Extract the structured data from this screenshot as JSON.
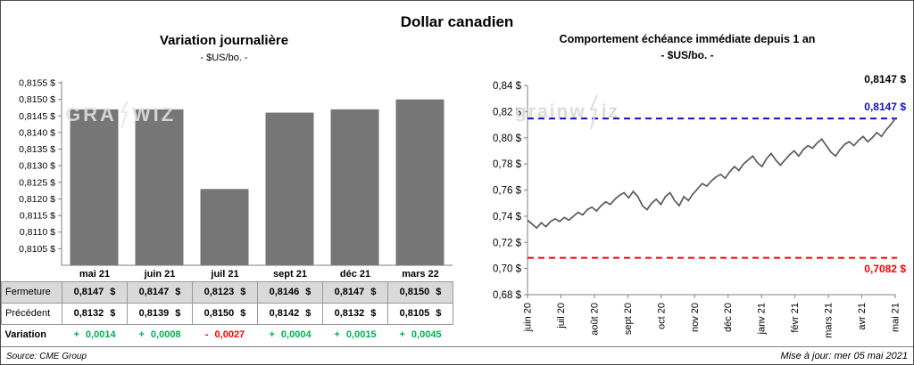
{
  "page_title": "Dollar canadien",
  "watermark": {
    "left_a": "GRA",
    "left_b": "WIZ",
    "right_a": "grainw",
    "right_b": "iz"
  },
  "footer": {
    "source": "Source: CME Group",
    "updated": "Mise à jour: mer 05 mai 2021"
  },
  "chart_data": [
    {
      "type": "bar",
      "title": "Variation journalière",
      "subtitle": "- $US/bo. -",
      "categories": [
        "mai 21",
        "juin 21",
        "juil 21",
        "sept 21",
        "déc 21",
        "mars 22"
      ],
      "values": [
        0.8147,
        0.8147,
        0.8123,
        0.8146,
        0.8147,
        0.815
      ],
      "ylim": [
        0.81,
        0.8155
      ],
      "y_tick_step": 0.0005,
      "y_tick_suffix": " $",
      "bar_color": "#767676",
      "axis_color": "#7f7f7f",
      "grid": false,
      "legend": "none"
    },
    {
      "type": "line",
      "title": "Comportement échéance immédiate depuis 1 an",
      "subtitle": "- $US/bo. -",
      "x_labels": [
        "juin 20",
        "juil 20",
        "août 20",
        "sept 20",
        "oct 20",
        "nov 20",
        "déc 20",
        "janv 21",
        "févr 21",
        "mars 21",
        "avr 21",
        "mai 21"
      ],
      "values": [
        0.737,
        0.734,
        0.731,
        0.735,
        0.732,
        0.736,
        0.738,
        0.736,
        0.739,
        0.737,
        0.74,
        0.743,
        0.741,
        0.745,
        0.747,
        0.744,
        0.748,
        0.751,
        0.749,
        0.753,
        0.756,
        0.758,
        0.754,
        0.759,
        0.755,
        0.748,
        0.745,
        0.75,
        0.753,
        0.749,
        0.755,
        0.758,
        0.752,
        0.748,
        0.755,
        0.752,
        0.757,
        0.761,
        0.765,
        0.763,
        0.767,
        0.77,
        0.772,
        0.769,
        0.774,
        0.778,
        0.775,
        0.78,
        0.783,
        0.786,
        0.781,
        0.778,
        0.784,
        0.788,
        0.783,
        0.779,
        0.783,
        0.787,
        0.79,
        0.786,
        0.791,
        0.794,
        0.792,
        0.796,
        0.799,
        0.794,
        0.789,
        0.786,
        0.791,
        0.795,
        0.797,
        0.794,
        0.798,
        0.801,
        0.797,
        0.8,
        0.804,
        0.801,
        0.806,
        0.81,
        0.8147
      ],
      "ylim": [
        0.68,
        0.84
      ],
      "y_tick_step": 0.02,
      "y_tick_suffix": " $",
      "line_color": "#595959",
      "axis_color": "#808080",
      "grid": false,
      "legend": "none",
      "reference_lines": [
        {
          "value": 0.8147,
          "label": "0,8147 $",
          "color": "#0f0fd0",
          "style": "dashed"
        },
        {
          "value": 0.7082,
          "label": "0,7082 $",
          "color": "#ff0000",
          "style": "dashed"
        }
      ],
      "annotations": [
        {
          "text": "0,8147 $",
          "color": "#000000",
          "position": "top-right"
        }
      ]
    },
    {
      "type": "table",
      "columns": [
        "mai 21",
        "juin 21",
        "juil 21",
        "sept 21",
        "déc 21",
        "mars 22"
      ],
      "rows": [
        {
          "label": "Fermeture",
          "values": [
            "0,8147 $",
            "0,8147 $",
            "0,8123 $",
            "0,8146 $",
            "0,8147 $",
            "0,8150 $"
          ],
          "shaded": true,
          "bordered": true,
          "colored": false
        },
        {
          "label": "Précédent",
          "values": [
            "0,8132 $",
            "0,8139 $",
            "0,8150 $",
            "0,8142 $",
            "0,8132 $",
            "0,8105 $"
          ],
          "shaded": false,
          "bordered": true,
          "colored": false
        },
        {
          "label": "Variation",
          "values": [
            "+ 0,0014",
            "+ 0,0008",
            "- 0,0027",
            "+ 0,0004",
            "+ 0,0015",
            "+ 0,0045"
          ],
          "shaded": false,
          "bordered": false,
          "colored": true
        }
      ],
      "positive_color": "#00b050",
      "negative_color": "#ff0000",
      "shaded_row_color": "#d9d9d9",
      "border_color": "#999999"
    }
  ]
}
